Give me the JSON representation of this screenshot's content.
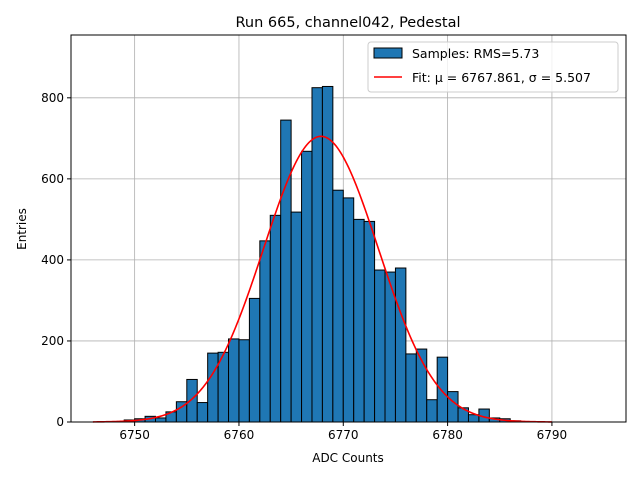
{
  "chart_data": {
    "type": "bar",
    "title": "Run 665, channel042, Pedestal",
    "xlabel": "ADC Counts",
    "ylabel": "Entries",
    "xlim": [
      6743.9,
      6797.1
    ],
    "ylim": [
      0,
      955
    ],
    "xticks": [
      6750,
      6760,
      6770,
      6780,
      6790
    ],
    "yticks": [
      0,
      200,
      400,
      600,
      800
    ],
    "grid": true,
    "legend_position": "top-right",
    "bin_width": 1,
    "bin_left_edges": [
      6749,
      6750,
      6751,
      6752,
      6753,
      6754,
      6755,
      6756,
      6757,
      6758,
      6759,
      6760,
      6761,
      6762,
      6763,
      6764,
      6765,
      6766,
      6767,
      6768,
      6769,
      6770,
      6771,
      6772,
      6773,
      6774,
      6775,
      6776,
      6777,
      6778,
      6779,
      6780,
      6781,
      6782,
      6783,
      6784,
      6785,
      6786
    ],
    "series": [
      {
        "name": "Samples: RMS=5.73",
        "type": "histogram",
        "color": "#1f77b4",
        "values": [
          5,
          8,
          14,
          10,
          25,
          50,
          105,
          48,
          170,
          172,
          205,
          203,
          305,
          447,
          510,
          745,
          518,
          668,
          825,
          828,
          572,
          553,
          500,
          495,
          375,
          370,
          380,
          168,
          180,
          55,
          160,
          75,
          35,
          18,
          32,
          10,
          8,
          3
        ]
      },
      {
        "name": "Fit: μ = 6767.861, σ = 5.507",
        "type": "line",
        "color": "#ff0000",
        "gaussian": {
          "amplitude": 705,
          "mean": 6767.861,
          "sigma": 5.507,
          "x_range": [
            6746,
            6790
          ]
        }
      }
    ]
  }
}
